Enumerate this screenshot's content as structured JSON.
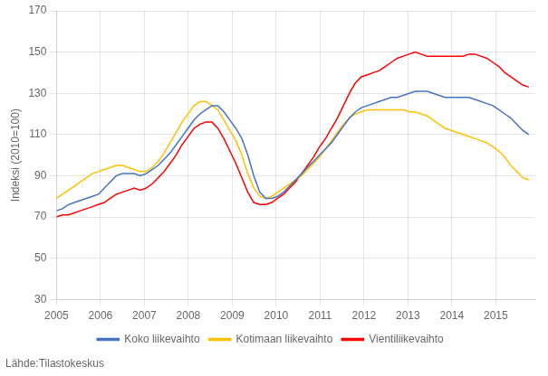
{
  "chart_data": {
    "type": "line",
    "ylabel": "Indeksi (2010=100)",
    "annotations": [
      "Lähde:Tilastokeskus"
    ],
    "x": [
      2005,
      2005.1361,
      2005.2722,
      2005.4082,
      2005.5443,
      2005.6804,
      2005.8165,
      2005.9525,
      2006.0886,
      2006.2247,
      2006.3608,
      2006.4968,
      2006.6329,
      2006.769,
      2006.9051,
      2007.0411,
      2007.1772,
      2007.3133,
      2007.4494,
      2007.5854,
      2007.7215,
      2007.8576,
      2007.9937,
      2008.1297,
      2008.2658,
      2008.4019,
      2008.538,
      2008.6741,
      2008.8101,
      2008.9462,
      2009.0823,
      2009.2184,
      2009.3544,
      2009.4905,
      2009.6266,
      2009.7627,
      2009.8987,
      2010.0348,
      2010.1709,
      2010.307,
      2010.443,
      2010.5791,
      2010.7152,
      2010.8513,
      2010.9873,
      2011.1234,
      2011.2595,
      2011.3956,
      2011.5316,
      2011.6677,
      2011.8038,
      2011.9399,
      2012.0759,
      2012.212,
      2012.3481,
      2012.4842,
      2012.6203,
      2012.7563,
      2012.8924,
      2013.0285,
      2013.1646,
      2013.3006,
      2013.4367,
      2013.5728,
      2013.7089,
      2013.8449,
      2013.981,
      2014.1171,
      2014.2532,
      2014.3892,
      2014.5253,
      2014.6614,
      2014.7975,
      2014.9335,
      2015.0696,
      2015.2057,
      2015.3418,
      2015.4778,
      2015.6139,
      2015.75
    ],
    "series": [
      {
        "name": "Koko liikevaihto",
        "color": "#4472C4",
        "values": [
          73,
          74,
          76,
          77,
          78,
          79,
          80,
          81,
          84,
          87,
          90,
          91,
          91,
          91,
          90,
          91,
          93,
          95,
          98,
          101,
          105,
          109,
          113,
          117,
          120,
          122,
          124,
          124,
          121,
          117,
          113,
          108,
          100,
          90,
          82,
          79,
          79,
          80,
          82,
          85,
          88,
          91,
          94,
          97,
          100,
          103,
          106,
          110,
          114,
          118,
          121,
          123,
          124,
          125,
          126,
          127,
          128,
          128,
          129,
          130,
          131,
          131,
          131,
          130,
          129,
          128,
          128,
          128,
          128,
          128,
          127,
          126,
          125,
          124,
          122,
          120,
          118,
          115,
          112,
          110
        ]
      },
      {
        "name": "Kotimaan liikevaihto",
        "color": "#FFC000",
        "values": [
          79,
          81,
          83,
          85,
          87,
          89,
          91,
          92,
          93,
          94,
          95,
          95,
          94,
          93,
          92,
          92,
          94,
          97,
          101,
          106,
          111,
          116,
          120,
          124,
          126,
          126,
          124,
          122,
          117,
          112,
          107,
          100,
          91,
          84,
          80,
          79,
          80,
          82,
          84,
          86,
          88,
          90,
          93,
          96,
          99,
          103,
          107,
          111,
          115,
          118,
          120,
          121,
          122,
          122,
          122,
          122,
          122,
          122,
          122,
          121,
          121,
          120,
          119,
          117,
          115,
          113,
          112,
          111,
          110,
          109,
          108,
          107,
          106,
          104,
          102,
          99,
          95,
          92,
          89,
          88
        ]
      },
      {
        "name": "Vientiliikevaihto",
        "color": "#FF0000",
        "values": [
          70,
          71,
          71,
          72,
          73,
          74,
          75,
          76,
          77,
          79,
          81,
          82,
          83,
          84,
          83,
          84,
          86,
          89,
          92,
          96,
          100,
          105,
          109,
          113,
          115,
          116,
          116,
          113,
          108,
          102,
          96,
          89,
          82,
          77,
          76,
          76,
          77,
          79,
          81,
          84,
          87,
          91,
          95,
          99,
          104,
          108,
          113,
          118,
          124,
          130,
          135,
          138,
          139,
          140,
          141,
          143,
          145,
          147,
          148,
          149,
          150,
          149,
          148,
          148,
          148,
          148,
          148,
          148,
          148,
          149,
          149,
          148,
          147,
          145,
          143,
          140,
          138,
          136,
          134,
          133
        ]
      }
    ],
    "xlim": [
      2005,
      2015.9
    ],
    "xticks": [
      2005,
      2006,
      2007,
      2008,
      2009,
      2010,
      2011,
      2012,
      2013,
      2014,
      2015
    ],
    "ylim": [
      30,
      170
    ],
    "yticks": [
      30,
      50,
      70,
      90,
      110,
      130,
      150,
      170
    ],
    "grid": true,
    "legend": "bottom"
  }
}
